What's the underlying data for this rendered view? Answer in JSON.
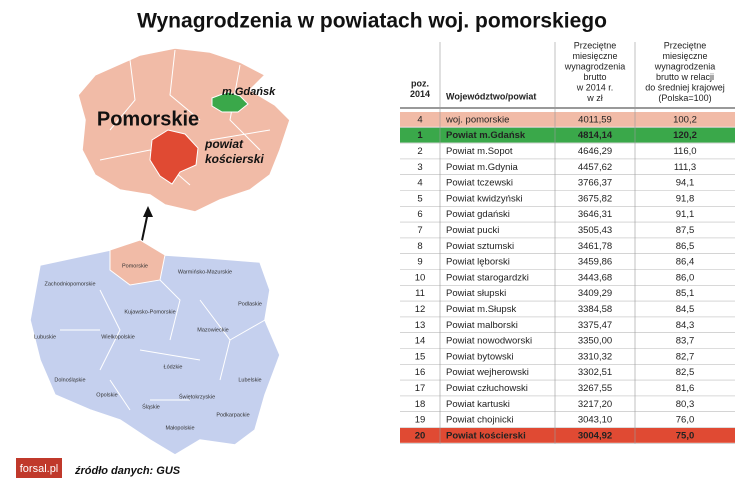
{
  "title": "Wynagrodzenia w powiatach woj. pomorskiego",
  "map": {
    "region_label": "Pomorskie",
    "city_label": "m.Gdańsk",
    "county_label": [
      "powiat",
      "kościerski"
    ],
    "voivodeships": [
      "Pomorskie",
      "Warmińsko-Mazurskie",
      "Zachodniopomorskie",
      "Kujawsko-Pomorskie",
      "Podlaskie",
      "Lubuskie",
      "Wielkopolskie",
      "Mazowieckie",
      "Łódzkie",
      "Dolnośląskie",
      "Lubelskie",
      "Opolskie",
      "Świętokrzyskie",
      "Śląskie",
      "Podkarpackie",
      "Małopolskie"
    ]
  },
  "table": {
    "headers": [
      [
        "poz.",
        "2014"
      ],
      [
        "Województwo/powiat"
      ],
      [
        "Przeciętne",
        "miesięczne",
        "wynagrodzenia",
        "brutto",
        "w 2014 r.",
        "w zł"
      ],
      [
        "Przeciętne",
        "miesięczne",
        "wynagrodzenia",
        "brutto w relacji",
        "do średniej krajowej",
        "(Polska=100)"
      ]
    ],
    "rows": [
      [
        "4",
        "woj. pomorskie",
        "4011,59",
        "100,2"
      ],
      [
        "1",
        "Powiat m.Gdańsk",
        "4814,14",
        "120,2"
      ],
      [
        "2",
        "Powiat m.Sopot",
        "4646,29",
        "116,0"
      ],
      [
        "3",
        "Powiat m.Gdynia",
        "4457,62",
        "111,3"
      ],
      [
        "4",
        "Powiat tczewski",
        "3766,37",
        "94,1"
      ],
      [
        "5",
        "Powiat kwidzyński",
        "3675,82",
        "91,8"
      ],
      [
        "6",
        "Powiat gdański",
        "3646,31",
        "91,1"
      ],
      [
        "7",
        "Powiat pucki",
        "3505,43",
        "87,5"
      ],
      [
        "8",
        "Powiat sztumski",
        "3461,78",
        "86,5"
      ],
      [
        "9",
        "Powiat lęborski",
        "3459,86",
        "86,4"
      ],
      [
        "10",
        "Powiat starogardzki",
        "3443,68",
        "86,0"
      ],
      [
        "11",
        "Powiat słupski",
        "3409,29",
        "85,1"
      ],
      [
        "12",
        "Powiat m.Słupsk",
        "3384,58",
        "84,5"
      ],
      [
        "13",
        "Powiat malborski",
        "3375,47",
        "84,3"
      ],
      [
        "14",
        "Powiat nowodworski",
        "3350,00",
        "83,7"
      ],
      [
        "15",
        "Powiat bytowski",
        "3310,32",
        "82,7"
      ],
      [
        "16",
        "Powiat wejherowski",
        "3302,51",
        "82,5"
      ],
      [
        "17",
        "Powiat człuchowski",
        "3267,55",
        "81,6"
      ],
      [
        "18",
        "Powiat kartuski",
        "3217,20",
        "80,3"
      ],
      [
        "19",
        "Powiat chojnicki",
        "3043,10",
        "76,0"
      ],
      [
        "20",
        "Powiat kościerski",
        "3004,92",
        "75,0"
      ]
    ]
  },
  "footer": {
    "logo": "forsal.pl",
    "source": "źródło danych: GUS"
  }
}
